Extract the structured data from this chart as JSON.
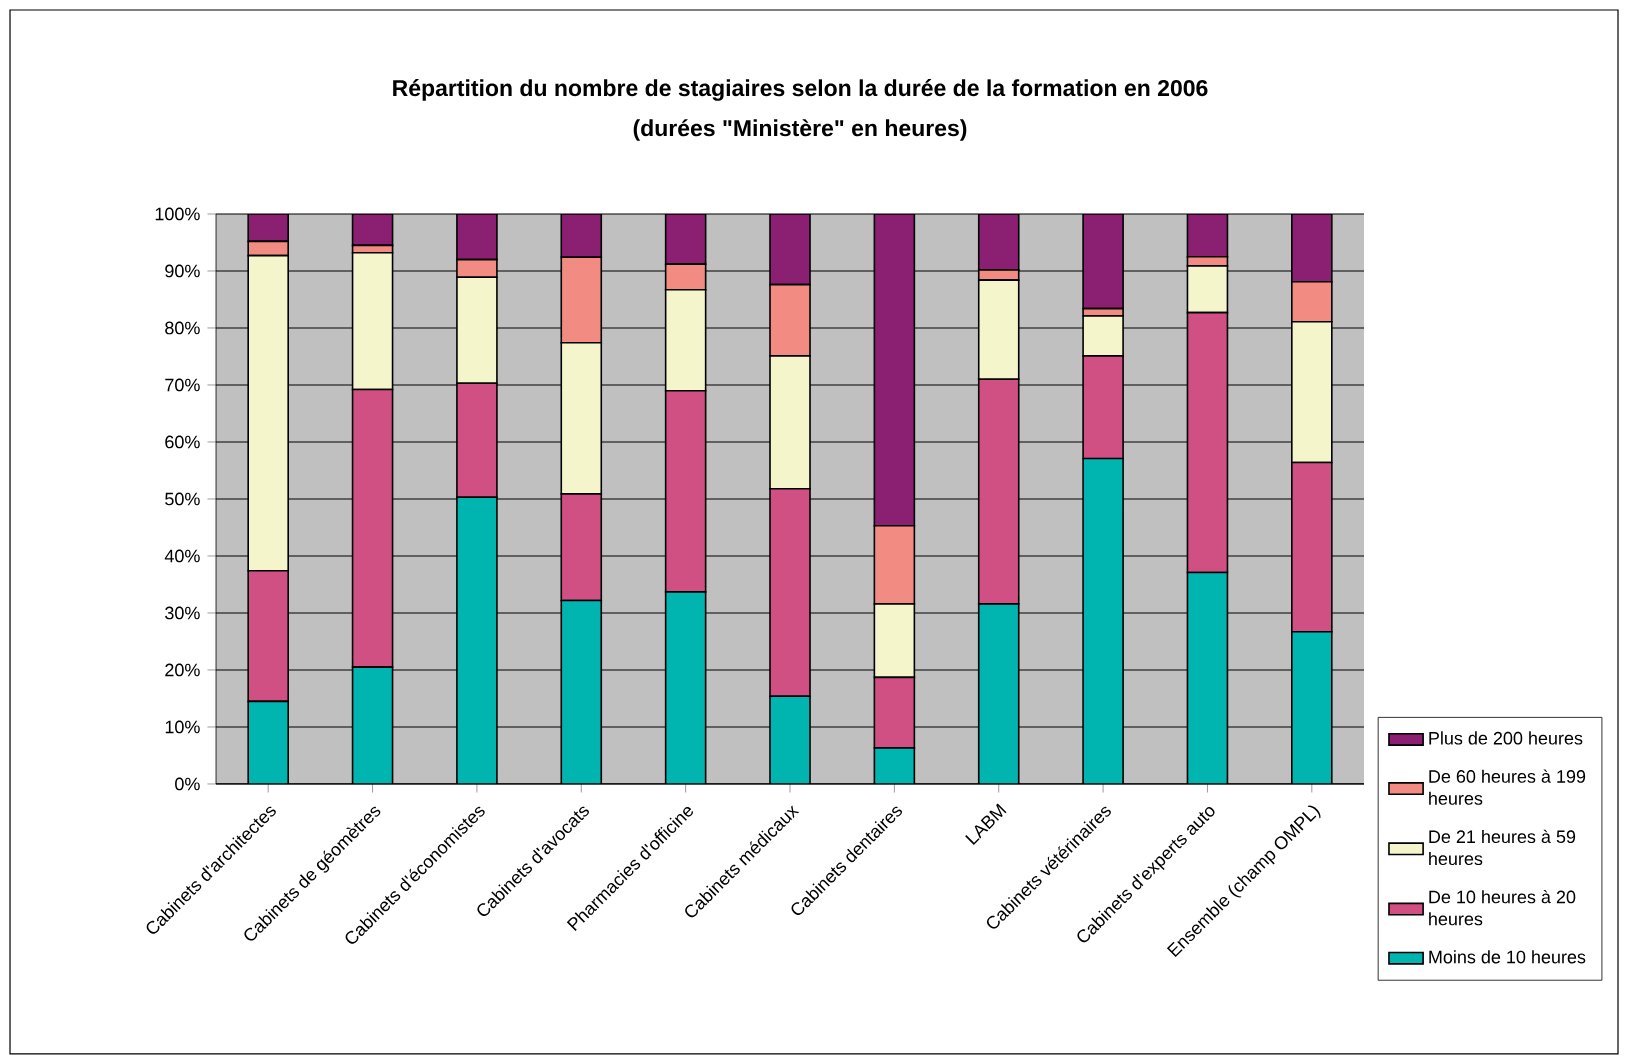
{
  "chart_data": {
    "type": "bar",
    "stacked": true,
    "title": "Répartition du nombre de stagiaires selon la durée de la formation en 2006",
    "subtitle": "(durées \"Ministère\" en heures)",
    "categories": [
      "Cabinets d'architectes",
      "Cabinets de géomètres",
      "Cabinets d'économistes",
      "Cabinets d'avocats",
      "Pharmacies d'officine",
      "Cabinets médicaux",
      "Cabinets dentaires",
      "LABM",
      "Cabinets vétérinaires",
      "Cabinets d'experts auto",
      "Ensemble (champ OMPL)"
    ],
    "series": [
      {
        "name": "Moins de 10 heures",
        "color": "#00b4b0",
        "values": [
          14.5,
          20.5,
          50.3,
          32.2,
          33.7,
          15.4,
          6.3,
          31.6,
          57.1,
          37.1,
          26.7
        ]
      },
      {
        "name": "De 10 heures à 20 heures",
        "color": "#d15083",
        "values": [
          22.9,
          48.7,
          20.0,
          18.7,
          35.3,
          36.4,
          12.4,
          39.4,
          18.0,
          45.6,
          29.7
        ]
      },
      {
        "name": "De 21 heures à 59 heures",
        "color": "#f5f5cc",
        "values": [
          55.3,
          24.0,
          18.6,
          26.5,
          17.7,
          23.3,
          12.9,
          17.4,
          7.0,
          8.2,
          24.7
        ]
      },
      {
        "name": "De 60 heures à 199 heures",
        "color": "#f28b82",
        "values": [
          2.5,
          1.3,
          3.1,
          15.0,
          4.5,
          12.5,
          13.7,
          1.8,
          1.3,
          1.6,
          7.0
        ]
      },
      {
        "name": "Plus de 200 heures",
        "color": "#8b1f72",
        "values": [
          4.8,
          5.5,
          8.0,
          7.6,
          8.8,
          12.4,
          54.7,
          9.8,
          16.6,
          7.5,
          11.9
        ]
      }
    ],
    "ylim": [
      0,
      100
    ],
    "yticks": [
      {
        "value": 0,
        "label": "0%"
      },
      {
        "value": 10,
        "label": "10%"
      },
      {
        "value": 20,
        "label": "20%"
      },
      {
        "value": 30,
        "label": "30%"
      },
      {
        "value": 40,
        "label": "40%"
      },
      {
        "value": 50,
        "label": "50%"
      },
      {
        "value": 60,
        "label": "60%"
      },
      {
        "value": 70,
        "label": "70%"
      },
      {
        "value": 80,
        "label": "80%"
      },
      {
        "value": 90,
        "label": "90%"
      },
      {
        "value": 100,
        "label": "100%"
      }
    ],
    "grid": "y",
    "legend": "right"
  }
}
